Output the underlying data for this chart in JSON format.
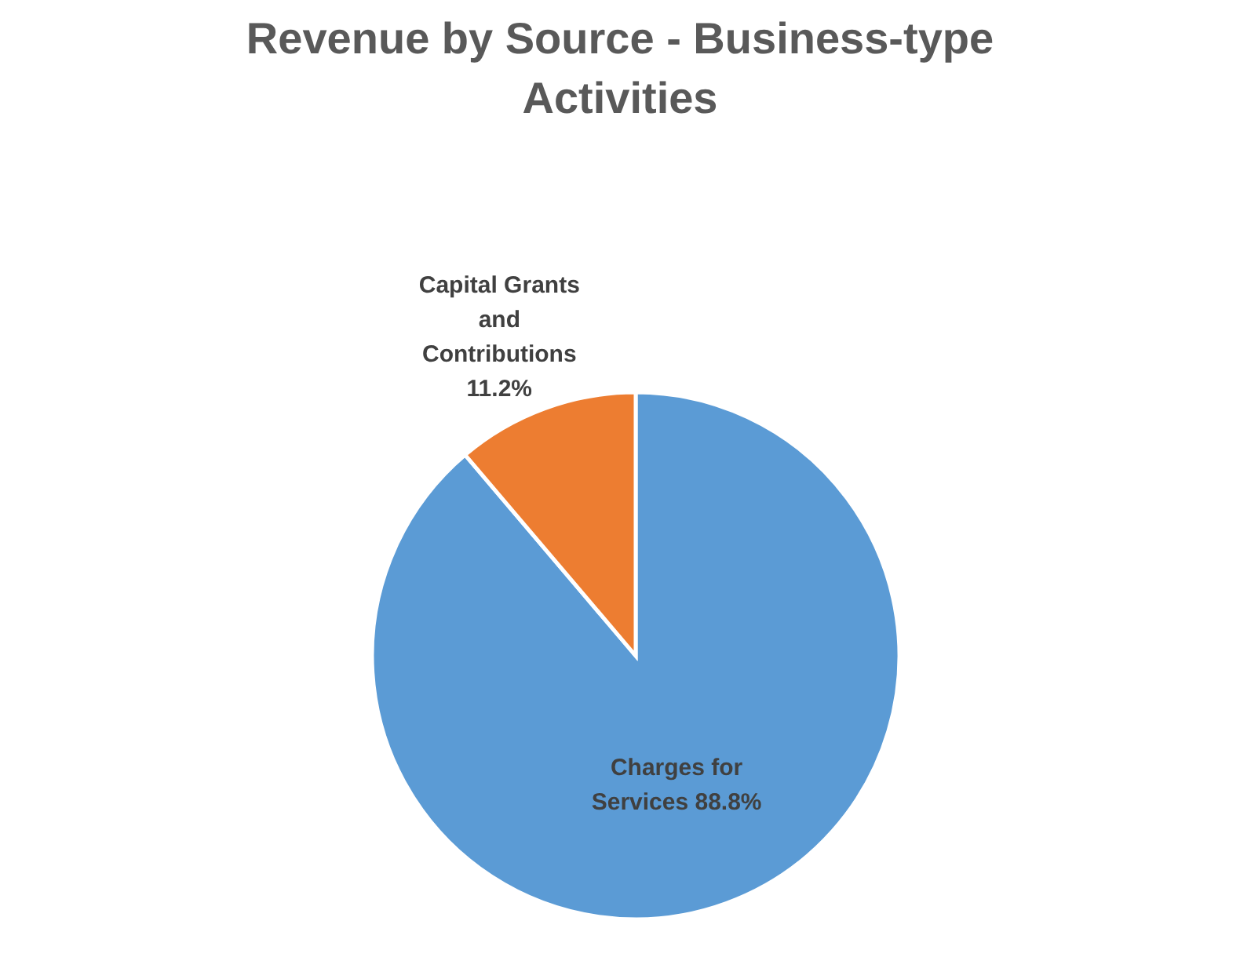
{
  "chart_data": {
    "type": "pie",
    "title": "Revenue by Source - Business-type Activities",
    "categories": [
      "Charges for Services",
      "Capital Grants and Contributions"
    ],
    "values": [
      88.8,
      11.2
    ],
    "colors": [
      "#5b9bd5",
      "#ed7d31"
    ],
    "value_labels": [
      "88.8%",
      "11.2%"
    ],
    "legend": false
  }
}
